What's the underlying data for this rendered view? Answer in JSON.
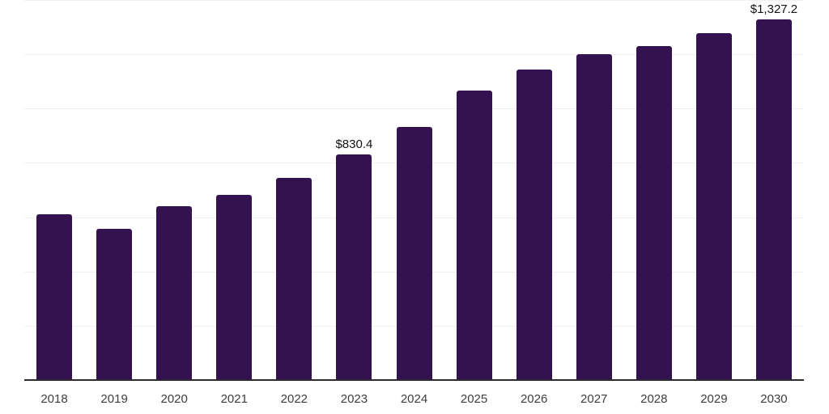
{
  "chart_data": {
    "type": "bar",
    "title": "",
    "xlabel": "",
    "ylabel": "",
    "categories": [
      "2018",
      "2019",
      "2020",
      "2021",
      "2022",
      "2023",
      "2024",
      "2025",
      "2026",
      "2027",
      "2028",
      "2029",
      "2030"
    ],
    "values": [
      611,
      557,
      640,
      682,
      745,
      830.4,
      932,
      1066,
      1144,
      1200,
      1230,
      1278,
      1327.2
    ],
    "point_labels": {
      "2023": "$830.4",
      "2030": "$1,327.2"
    },
    "ylim": [
      0,
      1400
    ],
    "grid_step": 200,
    "grid_on": true,
    "y_tick_labels_visible": false,
    "legend_position": "none",
    "colors": {
      "bar": "#341250",
      "gridline": "#f0f0f0",
      "axis": "#2b2b2b",
      "x_label": "#3d3d3d",
      "value_label": "#121212",
      "background": "#ffffff"
    }
  }
}
